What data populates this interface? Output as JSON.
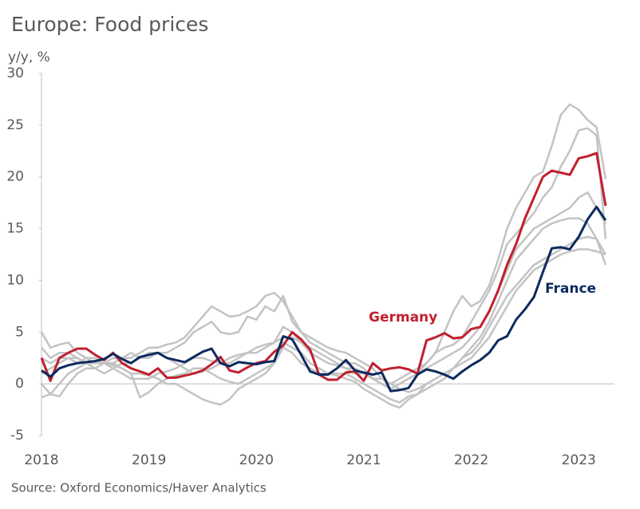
{
  "chart_data": {
    "type": "line",
    "title": "Europe: Food prices",
    "y_label": "y/y, %",
    "source": "Source: Oxford Economics/Haver Analytics",
    "categories": [
      "2018",
      null,
      null,
      null,
      null,
      null,
      null,
      null,
      null,
      null,
      null,
      null,
      "2019",
      null,
      null,
      null,
      null,
      null,
      null,
      null,
      null,
      null,
      null,
      null,
      "2020",
      null,
      null,
      null,
      null,
      null,
      null,
      null,
      null,
      null,
      null,
      null,
      "2021",
      null,
      null,
      null,
      null,
      null,
      null,
      null,
      null,
      null,
      null,
      null,
      "2022",
      null,
      null,
      null,
      null,
      null,
      null,
      null,
      null,
      null,
      null,
      null,
      "2023",
      null,
      null,
      null
    ],
    "ylim": [
      -5,
      30
    ],
    "yticks": [
      -5,
      0,
      5,
      10,
      15,
      20,
      25,
      30
    ],
    "series": [
      {
        "color": "#c3c3c3",
        "values": [
          5,
          3.5,
          3.8,
          4,
          3,
          2.5,
          2,
          2,
          2,
          2.5,
          2.5,
          3,
          3.5,
          3.5,
          3.8,
          4,
          4.5,
          5.5,
          6.5,
          7.5,
          7,
          6.5,
          6.6,
          7,
          7.5,
          8.5,
          8.8,
          8,
          6.5,
          5,
          4.5,
          4,
          3.5,
          3.2,
          3,
          2.5,
          2,
          1.5,
          0.5,
          0,
          0.5,
          1,
          1.5,
          2,
          3,
          5,
          7,
          8.5,
          7.5,
          8,
          9.5,
          12,
          15,
          17,
          18.5,
          20,
          20.5,
          23,
          26,
          27,
          26.5,
          25.5,
          24.8,
          19.8
        ]
      },
      {
        "color": "#c3c3c3",
        "values": [
          3.5,
          2.5,
          3,
          3,
          2.5,
          2,
          2,
          2,
          2.5,
          2.5,
          3,
          2.5,
          2.5,
          3,
          3,
          3.5,
          4,
          5,
          5.5,
          6,
          5,
          4.8,
          5,
          6.5,
          6.2,
          7.5,
          7,
          8.5,
          6,
          5,
          4,
          3.5,
          3,
          2.5,
          2,
          2,
          1.5,
          0.5,
          0,
          -0.5,
          0,
          0.5,
          1,
          2,
          3,
          3.5,
          3.8,
          4.5,
          6,
          7.5,
          9,
          11,
          13.5,
          14.5,
          15.5,
          16.5,
          18,
          19,
          21,
          22.5,
          24.5,
          24.7,
          24,
          14
        ]
      },
      {
        "color": "#c3c3c3",
        "values": [
          0,
          -1,
          -1.2,
          0,
          1,
          1.5,
          1.5,
          2,
          2,
          1.5,
          1,
          -1.3,
          -0.8,
          0,
          0.5,
          0.8,
          1,
          1.5,
          1.5,
          1,
          0.5,
          0.2,
          0,
          0.5,
          1,
          1.5,
          2,
          4,
          3.5,
          3,
          2,
          1.5,
          1,
          1,
          1,
          0.5,
          0,
          -0.5,
          -1,
          -1.5,
          -1.8,
          -1.2,
          -1,
          0,
          0.5,
          1,
          1.5,
          2.5,
          3.5,
          4.5,
          6,
          8,
          10,
          12,
          13,
          14,
          15,
          15.5,
          15.8,
          16,
          16,
          15.5,
          14,
          11.5
        ]
      },
      {
        "color": "#c3c3c3",
        "values": [
          -1.3,
          -1,
          0,
          1,
          1.5,
          2,
          2.2,
          2,
          1.8,
          1.5,
          1,
          1,
          0.8,
          0.5,
          0,
          0,
          -0.5,
          -1,
          -1.5,
          -1.8,
          -2,
          -1.5,
          -0.5,
          0,
          0.5,
          1,
          2,
          3.5,
          3,
          2,
          1.5,
          1,
          1,
          0.8,
          0.5,
          0.2,
          -0.5,
          -1,
          -1.5,
          -2,
          -2.3,
          -1.5,
          -1,
          -0.5,
          0,
          0.5,
          1.5,
          2.5,
          3,
          4,
          5.5,
          7,
          8.5,
          9.5,
          10.5,
          11.5,
          12,
          12.5,
          13,
          13.5,
          14,
          14.2,
          14,
          12.5
        ]
      },
      {
        "color": "#c3c3c3",
        "values": [
          2.5,
          2,
          2.5,
          2.5,
          2,
          2.5,
          2.5,
          2,
          1.5,
          1,
          0.5,
          0.5,
          0.5,
          1,
          1.2,
          1.5,
          2,
          2.5,
          2.5,
          2.2,
          2,
          2,
          2.5,
          3,
          3,
          3.5,
          4,
          4.5,
          4.5,
          4,
          3.5,
          3,
          2.5,
          2,
          1.5,
          1,
          1,
          0.5,
          0,
          -0.5,
          0,
          0.5,
          1,
          1.5,
          2,
          2.5,
          3,
          3.5,
          4.5,
          5.5,
          7,
          9,
          11,
          13,
          14,
          15,
          15.5,
          16,
          16.5,
          17,
          18,
          18.5,
          17,
          15.5
        ]
      },
      {
        "color": "#c3c3c3",
        "values": [
          1,
          1.5,
          2,
          2.5,
          2.5,
          2,
          1.5,
          1,
          1.5,
          2,
          2,
          2.5,
          3,
          3,
          2.5,
          2,
          1.5,
          1,
          1.2,
          1.5,
          2,
          2.5,
          2.8,
          3,
          3.5,
          3.8,
          4,
          5.5,
          5,
          4,
          3,
          2.5,
          2,
          1.8,
          1.5,
          1.5,
          1,
          0.5,
          0.5,
          0,
          -0.5,
          -0.8,
          -0.5,
          0,
          0.5,
          1,
          1.5,
          2,
          2.5,
          3.5,
          4.5,
          6,
          7.5,
          9,
          10,
          11,
          11.5,
          12,
          12.5,
          12.8,
          13,
          13,
          12.8,
          12.5
        ]
      },
      {
        "name": "Germany",
        "color": "#c0202e",
        "values": [
          2.5,
          0.3,
          2.5,
          3,
          3.4,
          3.4,
          2.8,
          2.3,
          3,
          2,
          1.5,
          1.2,
          0.9,
          1.5,
          0.6,
          0.6,
          0.8,
          1,
          1.3,
          1.9,
          2.6,
          1.3,
          1.1,
          1.6,
          2,
          2.2,
          3.1,
          3.7,
          5,
          4.3,
          3.3,
          0.9,
          0.4,
          0.4,
          1.1,
          1.2,
          0.3,
          2,
          1.3,
          1.5,
          1.6,
          1.4,
          1,
          4.2,
          4.5,
          4.9,
          4.4,
          4.5,
          5.3,
          5.5,
          7,
          9,
          11.5,
          13.5,
          16,
          18,
          20,
          20.6,
          20.4,
          20.2,
          21.8,
          22,
          22.3,
          17.2
        ]
      },
      {
        "name": "France",
        "color": "#0d2a5f",
        "values": [
          1.3,
          0.7,
          1.5,
          1.8,
          2,
          2.1,
          2.2,
          2.4,
          2.9,
          2.4,
          2,
          2.6,
          2.8,
          3,
          2.5,
          2.3,
          2.1,
          2.6,
          3.1,
          3.4,
          2,
          1.7,
          2.1,
          2,
          1.9,
          2.1,
          2.2,
          4.6,
          4.3,
          2.8,
          1.2,
          0.9,
          0.9,
          1.5,
          2.3,
          1.3,
          1.1,
          0.9,
          1.1,
          -0.7,
          -0.6,
          -0.4,
          0.9,
          1.4,
          1.2,
          0.9,
          0.5,
          1.2,
          1.8,
          2.3,
          3,
          4.2,
          4.6,
          6.2,
          7.2,
          8.4,
          10.8,
          13.1,
          13.2,
          13,
          14.2,
          15.9,
          17.1,
          15.8
        ]
      }
    ]
  }
}
